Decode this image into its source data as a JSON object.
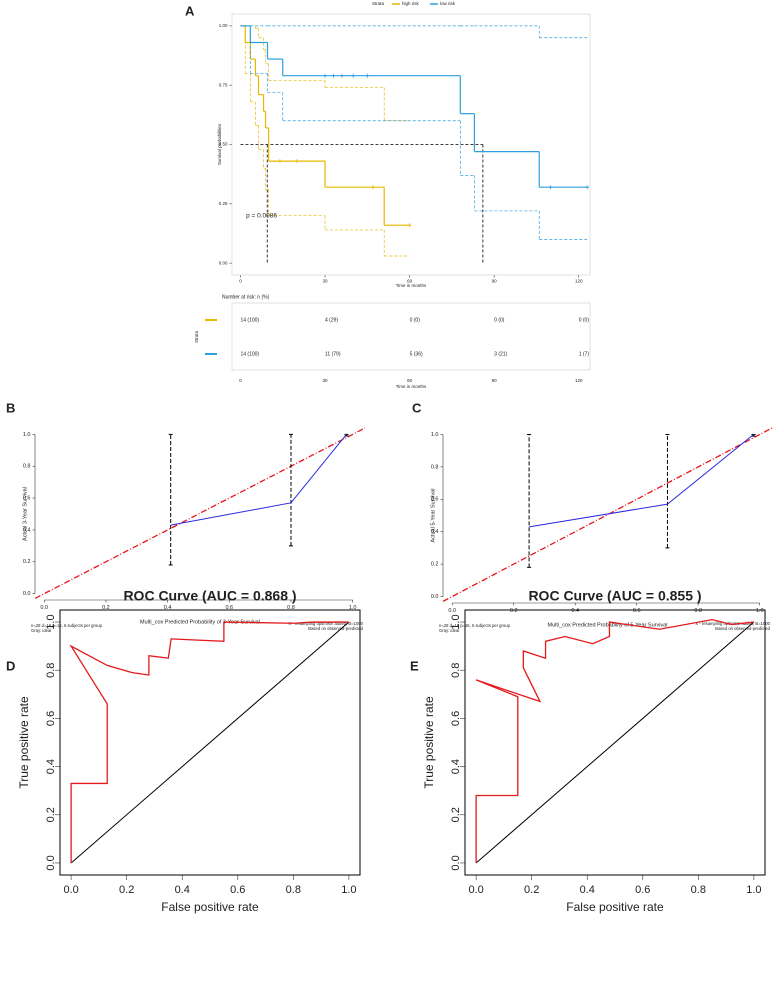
{
  "chart_data": [
    {
      "type": "km",
      "panel": "A",
      "xlabel": "Time in months",
      "ylabel": "Survival probabilities",
      "legend_title": "Strata",
      "legend": "top",
      "xlim": [
        -3,
        124
      ],
      "ylim": [
        -0.05,
        1.05
      ],
      "xticks": [
        0,
        30,
        60,
        90,
        120
      ],
      "yticks": [
        {
          "value": 0,
          "label": "0.00"
        },
        0.25,
        {
          "value": 0.5,
          "label": "0.50"
        },
        0.75,
        {
          "value": 1,
          "label": "1.00"
        }
      ],
      "annotation": "p = 0.0086",
      "median": {
        "y": 0.5,
        "x": [
          9.5,
          86
        ]
      },
      "series": [
        {
          "name": "high risk",
          "color": "#E7B800",
          "x": [
            0,
            1.7,
            3.5,
            5.3,
            6.4,
            8.2,
            8.9,
            10,
            30,
            51
          ],
          "values": [
            1,
            0.93,
            0.86,
            0.79,
            0.71,
            0.64,
            0.57,
            0.43,
            0.32,
            0.16
          ],
          "upper": [
            1,
            1,
            1,
            0.99,
            0.95,
            0.9,
            0.84,
            0.77,
            0.74,
            0.6
          ],
          "lower": [
            1,
            0.8,
            0.68,
            0.58,
            0.48,
            0.4,
            0.31,
            0.2,
            0.14,
            0.03
          ],
          "end": 60,
          "censor": [
            14,
            20,
            47,
            60
          ]
        },
        {
          "name": "low risk",
          "color": "#2E9FDF",
          "x": [
            0,
            3.5,
            9.6,
            15,
            78,
            83,
            106
          ],
          "values": [
            1,
            0.93,
            0.86,
            0.79,
            0.63,
            0.47,
            0.32
          ],
          "upper": [
            1,
            1,
            1,
            1,
            1,
            1,
            0.95
          ],
          "lower": [
            1,
            0.8,
            0.72,
            0.6,
            0.37,
            0.22,
            0.1
          ],
          "end": 123,
          "censor": [
            30,
            33,
            36,
            40,
            45,
            110,
            123
          ]
        }
      ],
      "risk_table": {
        "title": "Number at risk: n (%)",
        "ylabel": "Strata",
        "rows": [
          [
            "14 (100)",
            "4 (29)",
            "0 (0)",
            "0 (0)",
            "0 (0)"
          ],
          [
            "14 (100)",
            "11 (79)",
            "5 (36)",
            "3 (21)",
            "1 (7)"
          ]
        ]
      }
    },
    {
      "type": "calibration",
      "panel": "B",
      "xlabel": "Multi_cox Predicted Probability of 3-Year Survival",
      "ylabel": "Actual 3-Year Survival",
      "xlim": [
        -0.03,
        1.04
      ],
      "ylim": [
        -0.04,
        1.04
      ],
      "xticks": [
        {
          "value": 0,
          "label": "0.0"
        },
        0.2,
        0.4,
        0.6,
        0.8,
        {
          "value": 1,
          "label": "1.0"
        }
      ],
      "yticks": [
        {
          "value": 0,
          "label": "0.0"
        },
        0.2,
        0.4,
        0.6,
        0.8,
        {
          "value": 1,
          "label": "1.0"
        }
      ],
      "x": [
        0.41,
        0.8,
        0.98
      ],
      "values": [
        0.43,
        0.57,
        1.0
      ],
      "ci_lower": [
        0.18,
        0.3,
        0.99
      ],
      "ci_upper": [
        1,
        1,
        1
      ],
      "color": "#2a2ae0",
      "ideal_color": "#e8141c",
      "notes_left": [
        "n=28 d=16 p=15, 6 subjects per group",
        "Gray: ideal"
      ],
      "notes_right": [
        "X - resampling optimism added, B=1000",
        "Based on observed-predicted"
      ]
    },
    {
      "type": "calibration",
      "panel": "C",
      "xlabel": "Multi_cox Predicted Probability of 5-Year Survival",
      "ylabel": "Actual 5-Year Survival",
      "xlim": [
        -0.03,
        1.04
      ],
      "ylim": [
        -0.04,
        1.04
      ],
      "xticks": [
        {
          "value": 0,
          "label": "0.0"
        },
        0.2,
        0.4,
        0.6,
        0.8,
        {
          "value": 1,
          "label": "1.0"
        }
      ],
      "yticks": [
        {
          "value": 0,
          "label": "0.0"
        },
        0.2,
        0.4,
        0.6,
        0.8,
        {
          "value": 1,
          "label": "1.0"
        }
      ],
      "x": [
        0.25,
        0.7,
        0.98
      ],
      "values": [
        0.43,
        0.57,
        1.0
      ],
      "ci_lower": [
        0.18,
        0.3,
        0.99
      ],
      "ci_upper": [
        1,
        1,
        1
      ],
      "color": "#2a2ae0",
      "ideal_color": "#e8141c",
      "notes_left": [
        "n=28 d=16 p=15, 5 subjects per group",
        "Gray: ideal"
      ],
      "notes_right": [
        "X - resampling optimism added, B=1000",
        "Based on observed-predicted"
      ]
    },
    {
      "type": "roc",
      "panel": "D",
      "title": "ROC Curve (AUC = 0.868 )",
      "xlabel": "False positive rate",
      "ylabel": "True positive rate",
      "xlim": [
        -0.04,
        1.04
      ],
      "ylim": [
        -0.05,
        1.05
      ],
      "xticks": [
        {
          "value": 0,
          "label": "0.0"
        },
        0.2,
        0.4,
        0.6,
        0.8,
        {
          "value": 1,
          "label": "1.0"
        }
      ],
      "yticks": [
        {
          "value": 0,
          "label": "0.0"
        },
        0.2,
        0.4,
        0.6,
        0.8,
        {
          "value": 1,
          "label": "1.0"
        }
      ],
      "x": [
        0,
        0,
        0.13,
        0.13,
        0,
        0.13,
        0.22,
        0.28,
        0.28,
        0.35,
        0.36,
        0.55,
        0.55,
        0.8,
        0.87,
        1.0
      ],
      "values": [
        0,
        0.33,
        0.33,
        0.66,
        0.9,
        0.82,
        0.79,
        0.78,
        0.86,
        0.85,
        0.93,
        0.92,
        1.0,
        0.995,
        1.0,
        1.0
      ],
      "color": "#e41a1c"
    },
    {
      "type": "roc",
      "panel": "E",
      "title": "ROC Curve (AUC = 0.855 )",
      "xlabel": "False positive rate",
      "ylabel": "True positive rate",
      "xlim": [
        -0.04,
        1.04
      ],
      "ylim": [
        -0.05,
        1.05
      ],
      "xticks": [
        {
          "value": 0,
          "label": "0.0"
        },
        0.2,
        0.4,
        0.6,
        0.8,
        {
          "value": 1,
          "label": "1.0"
        }
      ],
      "yticks": [
        {
          "value": 0,
          "label": "0.0"
        },
        0.2,
        0.4,
        0.6,
        0.8,
        {
          "value": 1,
          "label": "1.0"
        }
      ],
      "x": [
        0,
        0,
        0.15,
        0.15,
        0.15,
        0,
        0.23,
        0.17,
        0.17,
        0.25,
        0.25,
        0.32,
        0.42,
        0.48,
        0.48,
        0.66,
        0.85,
        0.92,
        1.0
      ],
      "values": [
        0,
        0.28,
        0.28,
        0.55,
        0.69,
        0.76,
        0.67,
        0.81,
        0.88,
        0.85,
        0.92,
        0.94,
        0.91,
        0.94,
        1.0,
        0.97,
        1.01,
        0.99,
        1.0
      ],
      "color": "#e41a1c"
    }
  ]
}
